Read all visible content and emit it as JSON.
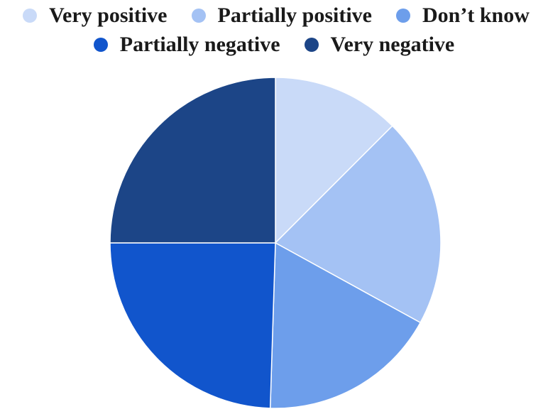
{
  "chart_data": {
    "type": "pie",
    "title": "",
    "legend_position": "top",
    "start_angle_deg": 0,
    "direction": "clockwise",
    "slices": [
      {
        "label": "Very positive",
        "value": 12.5,
        "color": "#c9daf8"
      },
      {
        "label": "Partially positive",
        "value": 20.5,
        "color": "#a4c2f4"
      },
      {
        "label": "Don’t know",
        "value": 17.5,
        "color": "#6d9eeb"
      },
      {
        "label": "Partially negative",
        "value": 24.5,
        "color": "#1155cc"
      },
      {
        "label": "Very negative",
        "value": 25.0,
        "color": "#1c4587"
      }
    ]
  }
}
